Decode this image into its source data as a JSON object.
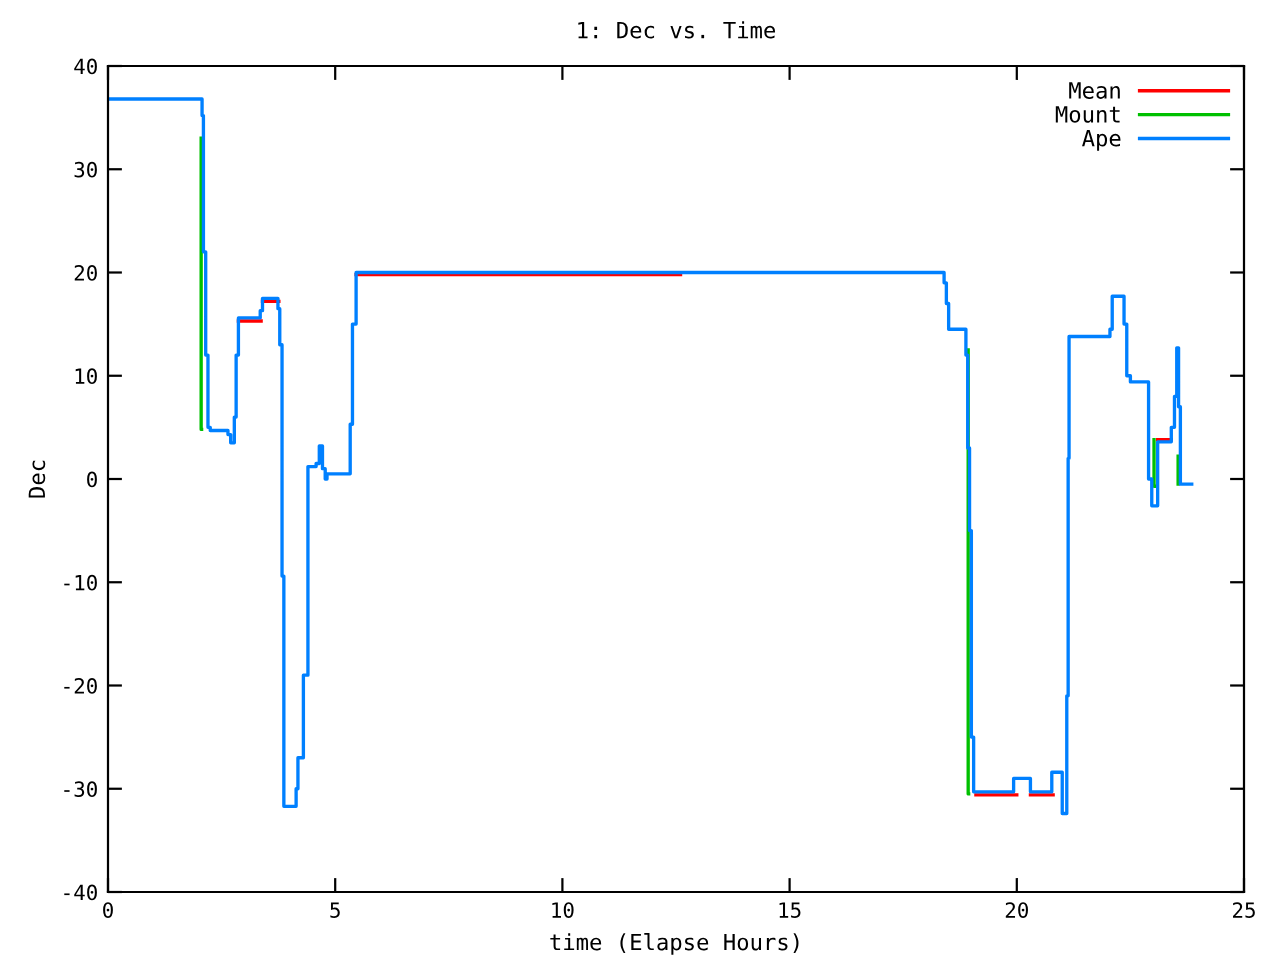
{
  "chart_data": {
    "type": "step",
    "title": "1: Dec vs. Time",
    "xlabel": "time (Elapse Hours)",
    "ylabel": "Dec",
    "xlim": [
      0,
      25
    ],
    "xticks": [
      0,
      5,
      10,
      15,
      20,
      25
    ],
    "ylim": [
      -40,
      40
    ],
    "yticks": [
      -40,
      -30,
      -20,
      -10,
      0,
      10,
      20,
      30,
      40
    ],
    "grid": false,
    "legend": "top right",
    "series": [
      {
        "name": "Mean",
        "color": "#ff0000",
        "x": [
          2.87,
          3.35,
          3.37,
          3.4,
          3.74,
          3.76,
          5.46,
          12.5,
          12.6,
          19.1,
          19.93,
          20.0,
          20.3,
          20.77,
          20.8,
          23.1,
          23.4
        ],
        "values": [
          15.3,
          15.3,
          null,
          17.2,
          17.2,
          null,
          19.8,
          19.8,
          null,
          -30.6,
          -30.6,
          null,
          -30.6,
          -30.6,
          null,
          3.8,
          3.8
        ]
      },
      {
        "name": "Mount",
        "color": "#00c000",
        "x": [
          2.05,
          2.05,
          2.06,
          18.93,
          18.93,
          18.94,
          23.02,
          23.02,
          23.03,
          23.55,
          23.55
        ],
        "values": [
          33,
          4.8,
          null,
          12.5,
          -30.5,
          null,
          3.8,
          -0.7,
          null,
          2.2,
          -0.5
        ]
      },
      {
        "name": "Ape",
        "color": "#0080ff",
        "x": [
          0,
          2.07,
          2.1,
          2.15,
          2.2,
          2.25,
          2.64,
          2.7,
          2.78,
          2.82,
          2.87,
          3.35,
          3.4,
          3.74,
          3.78,
          3.83,
          3.87,
          4.14,
          4.18,
          4.3,
          4.4,
          4.58,
          4.65,
          4.72,
          4.78,
          4.82,
          5.33,
          5.38,
          5.46,
          18.4,
          18.45,
          18.5,
          18.88,
          18.92,
          18.96,
          19.0,
          19.05,
          19.93,
          20.3,
          20.77,
          21.0,
          21.1,
          21.13,
          21.15,
          22.05,
          22.1,
          22.36,
          22.42,
          22.5,
          22.9,
          22.97,
          23.1,
          23.4,
          23.47,
          23.52,
          23.56,
          23.6,
          23.85
        ],
        "values": [
          36.8,
          35.2,
          22,
          12,
          5,
          4.7,
          4.3,
          3.5,
          6,
          12,
          15.6,
          16.3,
          17.5,
          16.5,
          13,
          -9.4,
          -31.7,
          -30,
          -27,
          -19,
          1.2,
          1.5,
          3.2,
          1,
          0,
          0.5,
          5.3,
          15,
          20,
          19,
          17,
          14.5,
          12,
          3,
          -5,
          -25,
          -30.3,
          -29,
          -30.3,
          -28.4,
          -32.4,
          -21,
          2,
          13.8,
          14.5,
          17.7,
          15,
          10,
          9.4,
          0,
          -2.6,
          3.6,
          5,
          8,
          12.7,
          7,
          -0.5,
          -0.5
        ]
      }
    ]
  }
}
